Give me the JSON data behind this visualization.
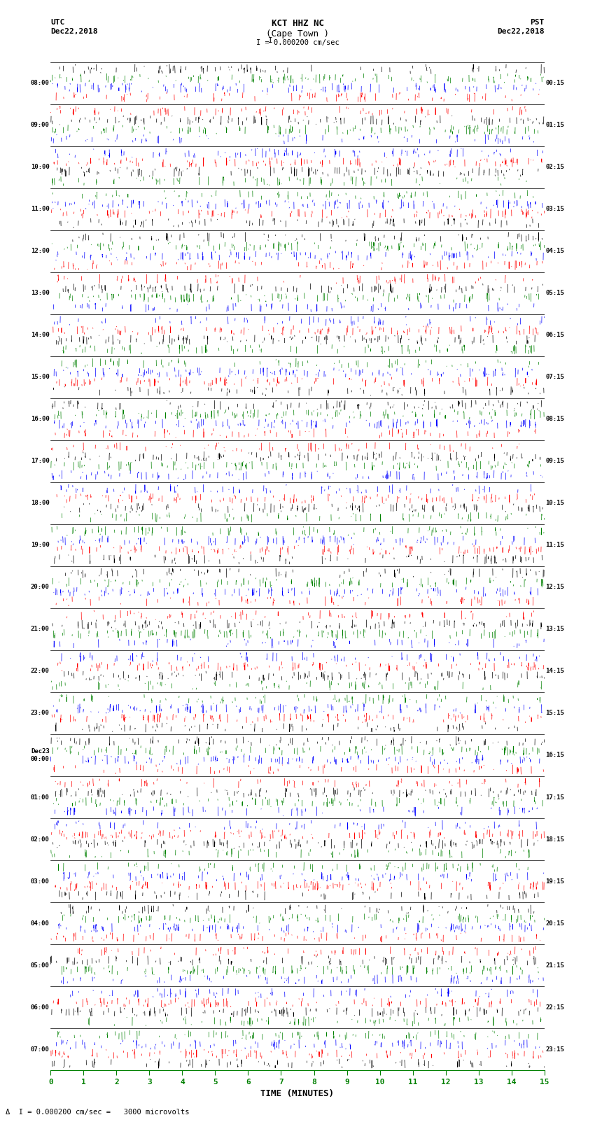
{
  "title_line1": "KCT HHZ NC",
  "title_line2": "(Cape Town )",
  "scale_label": "I = 0.000200 cm/sec",
  "bottom_label": "  I = 0.000200 cm/sec =   3000 microvolts",
  "xlabel": "TIME (MINUTES)",
  "left_label_top": "UTC",
  "left_date": "Dec22,2018",
  "right_label_top": "PST",
  "right_date": "Dec22,2018",
  "utc_times": [
    "08:00",
    "09:00",
    "10:00",
    "11:00",
    "12:00",
    "13:00",
    "14:00",
    "15:00",
    "16:00",
    "17:00",
    "18:00",
    "19:00",
    "20:00",
    "21:00",
    "22:00",
    "23:00",
    "Dec23\n00:00",
    "01:00",
    "02:00",
    "03:00",
    "04:00",
    "05:00",
    "06:00",
    "07:00"
  ],
  "pst_times": [
    "00:15",
    "01:15",
    "02:15",
    "03:15",
    "04:15",
    "05:15",
    "06:15",
    "07:15",
    "08:15",
    "09:15",
    "10:15",
    "11:15",
    "12:15",
    "13:15",
    "14:15",
    "15:15",
    "16:15",
    "17:15",
    "18:15",
    "19:15",
    "20:15",
    "21:15",
    "22:15",
    "23:15"
  ],
  "num_traces": 24,
  "trace_minutes": 15,
  "samples_per_trace": 3600,
  "bg_color": "white",
  "colors": [
    "red",
    "blue",
    "green",
    "black"
  ],
  "xmin": 0,
  "xmax": 15,
  "xticks": [
    0,
    1,
    2,
    3,
    4,
    5,
    6,
    7,
    8,
    9,
    10,
    11,
    12,
    13,
    14,
    15
  ],
  "tick_color": "green",
  "label_color": "black",
  "figwidth": 8.5,
  "figheight": 16.13,
  "lw": 0.5
}
